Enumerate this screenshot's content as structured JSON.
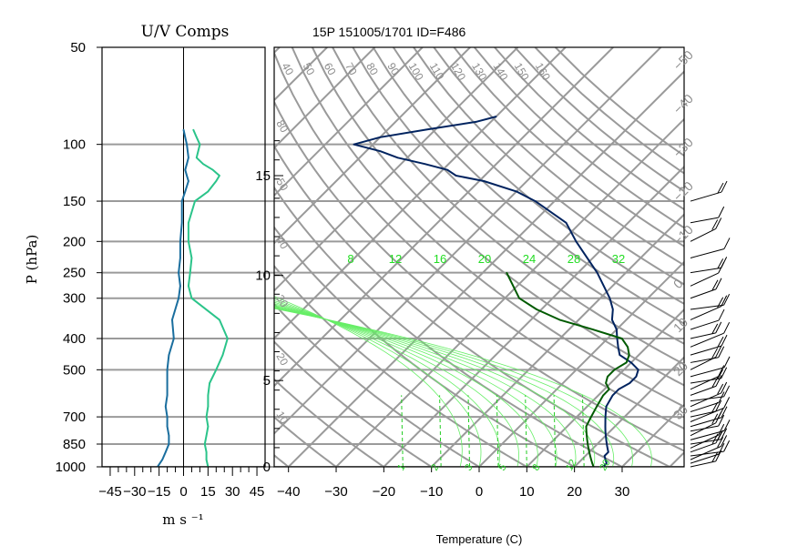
{
  "figure": {
    "title": "15P 151005/1701 ID=F486",
    "left_panel_title": "U/V Comps",
    "p_axis_label": "P (hPa)",
    "wind_axis_label": "m s ⁻¹",
    "temp_axis_label": "Temperature (C)"
  },
  "chart_data": [
    {
      "type": "line",
      "title": "U/V Comps",
      "xlabel": "m s ⁻¹",
      "ylabel": "P (hPa)",
      "xlim": [
        -50,
        50
      ],
      "ylim": [
        1000,
        50
      ],
      "y_scale": "log",
      "grid": true,
      "x_ticks": [
        "-45",
        "-30",
        "-15",
        "0",
        "15",
        "30",
        "45"
      ],
      "y_ticks": [
        "50",
        "100",
        "150",
        "200",
        "250",
        "300",
        "400",
        "500",
        "700",
        "850",
        "1000"
      ],
      "y_tick_values": [
        50,
        100,
        150,
        200,
        250,
        300,
        400,
        500,
        700,
        850,
        1000
      ],
      "pressure": [
        1000,
        950,
        900,
        850,
        800,
        750,
        700,
        650,
        600,
        550,
        500,
        450,
        400,
        350,
        300,
        275,
        250,
        225,
        200,
        175,
        150,
        140,
        130,
        125,
        120,
        115,
        110,
        100,
        95,
        90
      ],
      "series": [
        {
          "color": "#1a6e9e",
          "values": [
            -16,
            -13,
            -11,
            -9,
            -9,
            -10,
            -10,
            -11,
            -10,
            -10,
            -10,
            -9,
            -6,
            -7,
            -3,
            -2,
            -3,
            -2,
            -2,
            -1,
            -1,
            1,
            3,
            2,
            1,
            2,
            3,
            2,
            1,
            0
          ]
        },
        {
          "color": "#2bc48a",
          "values": [
            15,
            14,
            14,
            13,
            14,
            15,
            14,
            15,
            15,
            16,
            20,
            24,
            27,
            22,
            5,
            3,
            4,
            5,
            3,
            3,
            7,
            15,
            20,
            22,
            18,
            12,
            8,
            10,
            8,
            6
          ]
        }
      ]
    },
    {
      "type": "line",
      "title": "15P 151005/1701 ID=F486",
      "xlabel": "Temperature (C)",
      "xlim": [
        -43,
        43
      ],
      "ylim": [
        1000,
        50
      ],
      "y_scale": "log",
      "grid": true,
      "x_ticks": [
        "-40",
        "-30",
        "-20",
        "-10",
        "0",
        "10",
        "20",
        "30"
      ],
      "height_ticks": [
        "0",
        "5",
        "10",
        "15"
      ],
      "height_tick_pressures": [
        1000,
        540,
        255,
        125
      ],
      "isotherm_step": 10,
      "dry_adiabat_labels": [
        "40",
        "50",
        "60",
        "70",
        "80",
        "90",
        "100",
        "110",
        "120",
        "130",
        "140",
        "150",
        "160"
      ],
      "moist_adiabat_labels": [
        "80",
        "50",
        "40",
        "30",
        "20",
        "10"
      ],
      "mixing_ratio_labels": [
        "8",
        "12",
        "16",
        "20",
        "24",
        "28",
        "32"
      ],
      "dashed_line_labels": [
        "1",
        "2",
        "3",
        "5",
        "8",
        "12",
        "20"
      ],
      "wet_bulb_labels": [
        "-50",
        "-40",
        "-30",
        "-20",
        "-10",
        "0",
        "10",
        "20",
        "30"
      ],
      "pressure": [
        1000,
        975,
        950,
        925,
        900,
        875,
        850,
        825,
        800,
        775,
        750,
        700,
        650,
        600,
        575,
        550,
        525,
        500,
        475,
        450,
        425,
        400,
        375,
        350,
        325,
        300,
        250,
        200,
        175,
        150,
        140,
        130,
        125,
        120,
        115,
        110,
        105,
        100,
        95,
        90,
        85,
        82
      ],
      "series": [
        {
          "color": "#00235f",
          "values": [
            26,
            26,
            25,
            24,
            24,
            23,
            22,
            21,
            20,
            19,
            18,
            16,
            14,
            13,
            13,
            14,
            14,
            13,
            10,
            6,
            4,
            2,
            0,
            -3,
            -5,
            -8,
            -16,
            -27,
            -33,
            -44,
            -50,
            -59,
            -66,
            -69,
            -75,
            -82,
            -87,
            -94,
            -90,
            -82,
            -73,
            -70
          ]
        },
        {
          "color": "#005a00",
          "values": [
            24,
            23,
            22,
            21,
            20,
            19,
            18,
            17,
            16,
            15,
            14,
            13,
            12,
            11,
            11,
            9,
            8,
            8,
            9,
            8,
            6,
            3,
            -5,
            -14,
            -21,
            -27,
            -35
          ]
        }
      ]
    }
  ]
}
